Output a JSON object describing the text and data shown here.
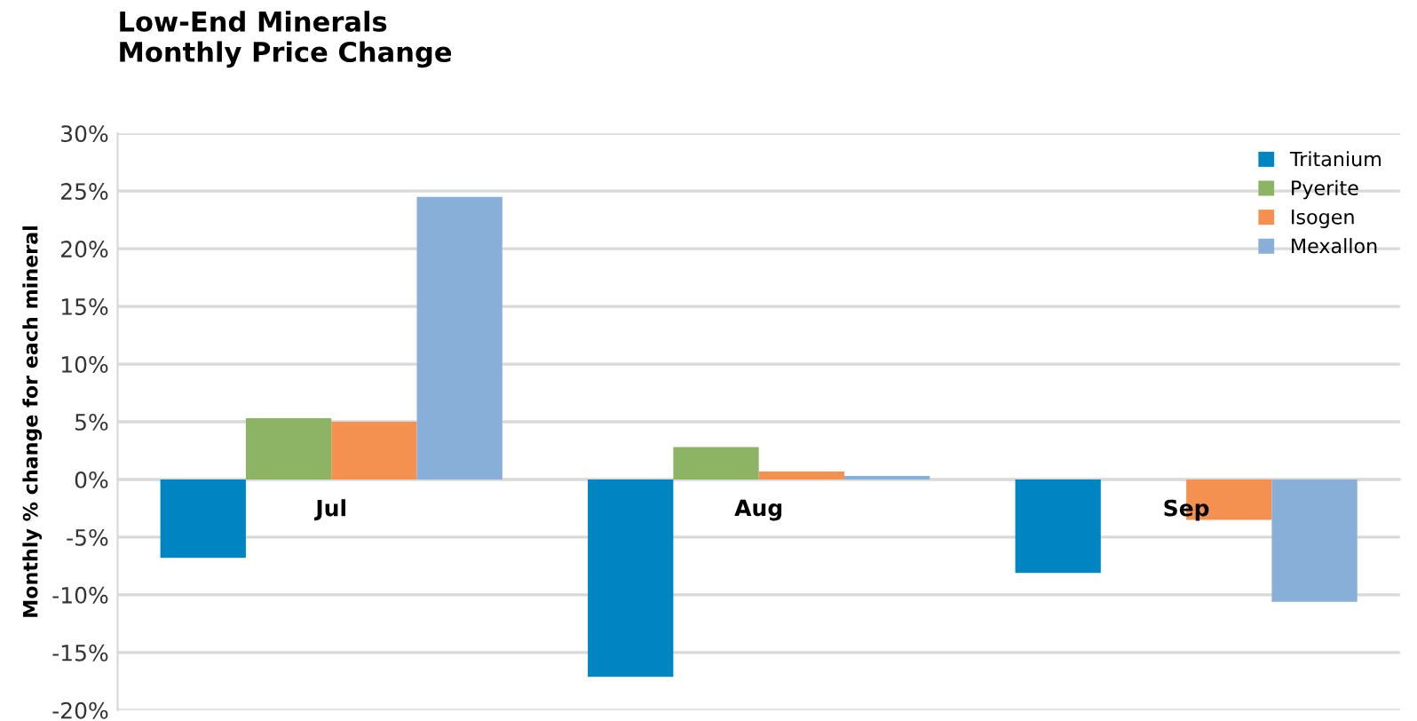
{
  "chart_data": {
    "type": "bar",
    "title": "Low-End Minerals\nMonthly Price Change",
    "ylabel": "Monthly % change for each mineral",
    "categories": [
      "Jul",
      "Aug",
      "Sep"
    ],
    "series": [
      {
        "name": "Tritanium",
        "color": "#0085c3",
        "values": [
          -6.8,
          -17.1,
          -8.1
        ]
      },
      {
        "name": "Pyerite",
        "color": "#8cb464",
        "values": [
          5.3,
          2.8,
          0
        ]
      },
      {
        "name": "Isogen",
        "color": "#f59150",
        "values": [
          5.0,
          0.7,
          -3.5
        ]
      },
      {
        "name": "Mexallon",
        "color": "#87afd7",
        "values": [
          24.5,
          0.3,
          -10.6
        ]
      }
    ],
    "ylim": [
      -20,
      30
    ],
    "yticks": [
      {
        "value": -20,
        "label": "-20%"
      },
      {
        "value": -15,
        "label": "-15%"
      },
      {
        "value": -10,
        "label": "-10%"
      },
      {
        "value": -5,
        "label": "-5%"
      },
      {
        "value": 0,
        "label": "0%"
      },
      {
        "value": 5,
        "label": "5%"
      },
      {
        "value": 10,
        "label": "10%"
      },
      {
        "value": 15,
        "label": "15%"
      },
      {
        "value": 20,
        "label": "20%"
      },
      {
        "value": 25,
        "label": "25%"
      },
      {
        "value": 30,
        "label": "30%"
      }
    ],
    "grid": "y",
    "legend": "top right"
  }
}
